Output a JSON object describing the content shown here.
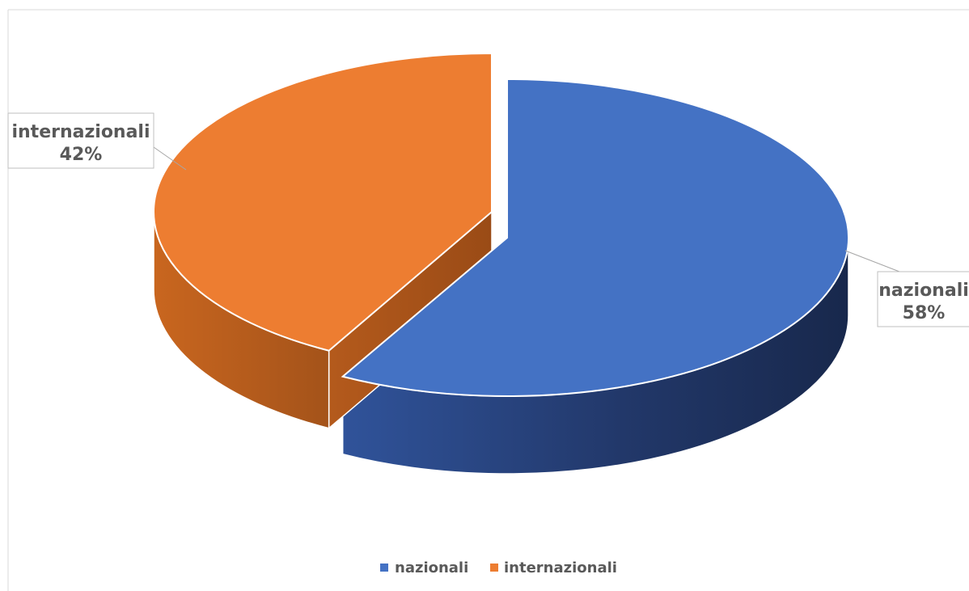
{
  "chart_data": {
    "type": "pie",
    "three_d": true,
    "exploded": true,
    "categories": [
      "nazionali",
      "internazionali"
    ],
    "values": [
      58,
      42
    ],
    "unit": "%",
    "colors": [
      "#4472C4",
      "#ED7D31"
    ],
    "data_labels": [
      {
        "category": "nazionali",
        "value": "58%"
      },
      {
        "category": "internazionali",
        "value": "42%"
      }
    ],
    "legend": {
      "position": "bottom",
      "entries": [
        "nazionali",
        "internazionali"
      ]
    }
  }
}
